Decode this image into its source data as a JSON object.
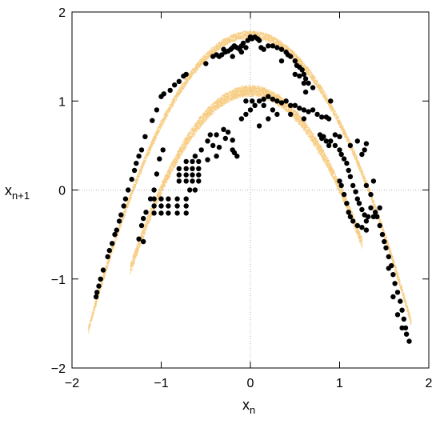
{
  "chart_data": {
    "type": "scatter",
    "title": "",
    "xlabel": {
      "base": "x",
      "sub": "n"
    },
    "ylabel": {
      "base": "x",
      "sub": "n+1"
    },
    "xlim": [
      -2,
      2
    ],
    "ylim": [
      -2,
      2
    ],
    "xticks": [
      -2,
      -1,
      0,
      1,
      2
    ],
    "yticks": [
      -2,
      -1,
      0,
      1,
      2
    ],
    "xtick_labels": [
      "−2",
      "−1",
      "0",
      "1",
      "2"
    ],
    "ytick_labels": [
      "−2",
      "−1",
      "0",
      "1",
      "2"
    ],
    "zero_lines": "dotted gray at x=0 and y=0",
    "legend": "none",
    "series": [
      {
        "role": "attractor cloud (dense fine dots)",
        "color": "#f0a31a",
        "bands": [
          {
            "x_range": [
              -1.82,
              1.8
            ],
            "a": 1.75,
            "b": -1.0,
            "half_width": 0.05
          },
          {
            "x_range": [
              -1.35,
              1.25
            ],
            "a": 1.12,
            "b": -1.1,
            "half_width": 0.07
          }
        ]
      },
      {
        "role": "sampled points (large black dots)",
        "color": "#000000",
        "points": [
          [
            -1.73,
            -1.2
          ],
          [
            -1.72,
            -1.15
          ],
          [
            -1.7,
            -1.08
          ],
          [
            -1.68,
            -1.0
          ],
          [
            -1.65,
            -0.9
          ],
          [
            -1.6,
            -0.75
          ],
          [
            -1.58,
            -0.68
          ],
          [
            -1.55,
            -0.6
          ],
          [
            -1.52,
            -0.5
          ],
          [
            -1.5,
            -0.45
          ],
          [
            -1.47,
            -0.35
          ],
          [
            -1.45,
            -0.28
          ],
          [
            -1.42,
            -0.18
          ],
          [
            -1.4,
            -0.1
          ],
          [
            -1.37,
            0.0
          ],
          [
            -1.33,
            0.12
          ],
          [
            -1.3,
            0.22
          ],
          [
            -1.28,
            0.3
          ],
          [
            -1.25,
            0.38
          ],
          [
            -1.22,
            0.45
          ],
          [
            -1.18,
            0.6
          ],
          [
            -1.1,
            0.78
          ],
          [
            -1.05,
            0.9
          ],
          [
            -1.0,
            1.05
          ],
          [
            -0.97,
            1.08
          ],
          [
            -0.9,
            1.12
          ],
          [
            -0.85,
            1.18
          ],
          [
            -0.8,
            1.22
          ],
          [
            -0.75,
            1.28
          ],
          [
            -0.72,
            1.3
          ],
          [
            -1.25,
            -0.55
          ],
          [
            -1.22,
            -0.4
          ],
          [
            -1.2,
            -0.32
          ],
          [
            -1.17,
            -0.25
          ],
          [
            -1.12,
            -0.1
          ],
          [
            -1.08,
            0.0
          ],
          [
            -1.05,
            0.18
          ],
          [
            -1.02,
            0.35
          ],
          [
            -0.98,
            0.45
          ],
          [
            -1.08,
            -0.1
          ],
          [
            -1.08,
            -0.18
          ],
          [
            -1.08,
            -0.26
          ],
          [
            -1.0,
            -0.1
          ],
          [
            -1.0,
            -0.18
          ],
          [
            -1.0,
            -0.26
          ],
          [
            -0.92,
            -0.1
          ],
          [
            -0.92,
            -0.18
          ],
          [
            -0.92,
            -0.26
          ],
          [
            -0.82,
            -0.1
          ],
          [
            -0.82,
            -0.18
          ],
          [
            -0.82,
            -0.26
          ],
          [
            -0.72,
            -0.1
          ],
          [
            -0.72,
            -0.18
          ],
          [
            -0.72,
            -0.26
          ],
          [
            -0.8,
            0.1
          ],
          [
            -0.8,
            0.17
          ],
          [
            -0.8,
            0.24
          ],
          [
            -0.72,
            0.1
          ],
          [
            -0.72,
            0.17
          ],
          [
            -0.72,
            0.24
          ],
          [
            -0.72,
            0.32
          ],
          [
            -0.65,
            0.1
          ],
          [
            -0.65,
            0.17
          ],
          [
            -0.65,
            0.24
          ],
          [
            -0.65,
            0.32
          ],
          [
            -0.58,
            0.1
          ],
          [
            -0.58,
            0.17
          ],
          [
            -0.58,
            0.24
          ],
          [
            -0.58,
            0.32
          ],
          [
            -0.68,
            0.0
          ],
          [
            -0.62,
            0.0
          ],
          [
            -0.62,
            0.38
          ],
          [
            -0.55,
            0.45
          ],
          [
            -0.48,
            0.55
          ],
          [
            -0.45,
            0.62
          ],
          [
            -0.38,
            0.62
          ],
          [
            -0.3,
            0.68
          ],
          [
            -0.25,
            0.65
          ],
          [
            -0.2,
            0.45
          ],
          [
            -0.18,
            0.42
          ],
          [
            -0.15,
            0.38
          ],
          [
            -0.2,
            0.56
          ],
          [
            -0.5,
            1.42
          ],
          [
            -0.42,
            1.5
          ],
          [
            -0.38,
            1.52
          ],
          [
            -0.35,
            1.5
          ],
          [
            -0.32,
            1.52
          ],
          [
            -0.28,
            1.55
          ],
          [
            -0.25,
            1.56
          ],
          [
            -0.22,
            1.58
          ],
          [
            -0.2,
            1.6
          ],
          [
            -0.18,
            1.62
          ],
          [
            -0.15,
            1.6
          ],
          [
            -0.12,
            1.58
          ],
          [
            -0.1,
            1.62
          ],
          [
            -0.08,
            1.65
          ],
          [
            -0.05,
            1.6
          ],
          [
            -0.03,
            1.68
          ],
          [
            0.0,
            1.72
          ],
          [
            0.02,
            1.7
          ],
          [
            0.05,
            1.72
          ],
          [
            0.08,
            1.7
          ],
          [
            0.1,
            1.68
          ],
          [
            0.12,
            1.6
          ],
          [
            0.15,
            1.58
          ],
          [
            0.2,
            1.62
          ],
          [
            0.25,
            1.62
          ],
          [
            0.3,
            1.6
          ],
          [
            0.35,
            1.58
          ],
          [
            0.4,
            1.55
          ],
          [
            0.42,
            1.52
          ],
          [
            0.45,
            1.5
          ],
          [
            0.5,
            1.45
          ],
          [
            0.52,
            1.4
          ],
          [
            0.55,
            1.38
          ],
          [
            0.58,
            1.35
          ],
          [
            0.6,
            1.3
          ],
          [
            0.62,
            1.25
          ],
          [
            0.65,
            1.2
          ],
          [
            0.7,
            1.15
          ],
          [
            0.5,
            1.3
          ],
          [
            0.55,
            1.28
          ],
          [
            0.6,
            1.2
          ],
          [
            -0.3,
            1.58
          ],
          [
            -0.2,
            1.5
          ],
          [
            -0.1,
            1.55
          ],
          [
            0.35,
            1.45
          ],
          [
            -0.1,
            0.8
          ],
          [
            -0.05,
            0.85
          ],
          [
            0.0,
            0.9
          ],
          [
            0.05,
            0.95
          ],
          [
            0.1,
            1.0
          ],
          [
            0.15,
            1.02
          ],
          [
            0.2,
            1.05
          ],
          [
            0.25,
            1.02
          ],
          [
            0.3,
            1.0
          ],
          [
            0.35,
            0.98
          ],
          [
            0.4,
            1.0
          ],
          [
            0.45,
            0.95
          ],
          [
            0.5,
            0.95
          ],
          [
            0.55,
            0.92
          ],
          [
            0.6,
            0.9
          ],
          [
            0.65,
            0.88
          ],
          [
            0.7,
            0.9
          ],
          [
            0.75,
            0.85
          ],
          [
            0.8,
            0.82
          ],
          [
            0.85,
            0.82
          ],
          [
            0.88,
            0.8
          ],
          [
            0.1,
            0.72
          ],
          [
            0.2,
            0.8
          ],
          [
            0.25,
            0.9
          ],
          [
            0.3,
            0.85
          ],
          [
            0.45,
            0.85
          ],
          [
            0.6,
            0.8
          ],
          [
            0.9,
            1.0
          ],
          [
            0.02,
            1.0
          ],
          [
            -0.05,
            1.0
          ],
          [
            0.15,
            0.95
          ],
          [
            0.78,
            0.62
          ],
          [
            0.8,
            0.58
          ],
          [
            0.82,
            0.6
          ],
          [
            0.85,
            0.55
          ],
          [
            0.88,
            0.5
          ],
          [
            0.9,
            0.55
          ],
          [
            0.95,
            0.62
          ],
          [
            1.0,
            0.6
          ],
          [
            0.95,
            0.5
          ],
          [
            1.0,
            0.45
          ],
          [
            1.02,
            0.4
          ],
          [
            1.05,
            0.35
          ],
          [
            1.08,
            0.3
          ],
          [
            1.1,
            0.22
          ],
          [
            1.12,
            0.15
          ],
          [
            1.15,
            0.05
          ],
          [
            1.18,
            -0.02
          ],
          [
            1.2,
            -0.1
          ],
          [
            1.22,
            -0.15
          ],
          [
            1.25,
            -0.22
          ],
          [
            1.28,
            -0.28
          ],
          [
            1.3,
            -0.35
          ],
          [
            1.32,
            -0.3
          ],
          [
            1.35,
            -0.2
          ],
          [
            1.25,
            0.4
          ],
          [
            1.28,
            0.45
          ],
          [
            1.3,
            0.52
          ],
          [
            1.2,
            0.55
          ],
          [
            1.12,
            0.5
          ],
          [
            1.0,
            0.1
          ],
          [
            1.02,
            0.05
          ],
          [
            1.05,
            -0.05
          ],
          [
            1.08,
            -0.15
          ],
          [
            1.1,
            -0.25
          ],
          [
            1.12,
            -0.3
          ],
          [
            1.15,
            -0.35
          ],
          [
            1.2,
            -0.4
          ],
          [
            1.25,
            -0.42
          ],
          [
            1.3,
            -0.45
          ],
          [
            1.38,
            -0.3
          ],
          [
            1.4,
            -0.25
          ],
          [
            1.42,
            -0.3
          ],
          [
            1.45,
            -0.4
          ],
          [
            1.48,
            -0.5
          ],
          [
            1.5,
            -0.58
          ],
          [
            1.52,
            -0.65
          ],
          [
            1.55,
            -0.75
          ],
          [
            1.58,
            -0.85
          ],
          [
            1.6,
            -0.95
          ],
          [
            1.62,
            -1.05
          ],
          [
            1.65,
            -1.15
          ],
          [
            1.68,
            -1.25
          ],
          [
            1.7,
            -1.35
          ],
          [
            1.72,
            -1.45
          ],
          [
            1.74,
            -1.55
          ],
          [
            1.75,
            -1.62
          ],
          [
            1.78,
            -1.7
          ],
          [
            1.55,
            -0.88
          ],
          [
            1.6,
            -1.2
          ],
          [
            1.65,
            -1.4
          ],
          [
            1.7,
            -1.55
          ],
          [
            1.45,
            -0.2
          ],
          [
            1.35,
            -0.05
          ],
          [
            1.3,
            0.05
          ],
          [
            1.38,
            0.1
          ],
          [
            -0.38,
            0.38
          ],
          [
            -0.48,
            0.34
          ],
          [
            -0.35,
            0.48
          ],
          [
            -0.42,
            0.5
          ],
          [
            -0.28,
            0.58
          ],
          [
            -1.2,
            -0.58
          ],
          [
            0.62,
            1.1
          ]
        ]
      }
    ]
  }
}
